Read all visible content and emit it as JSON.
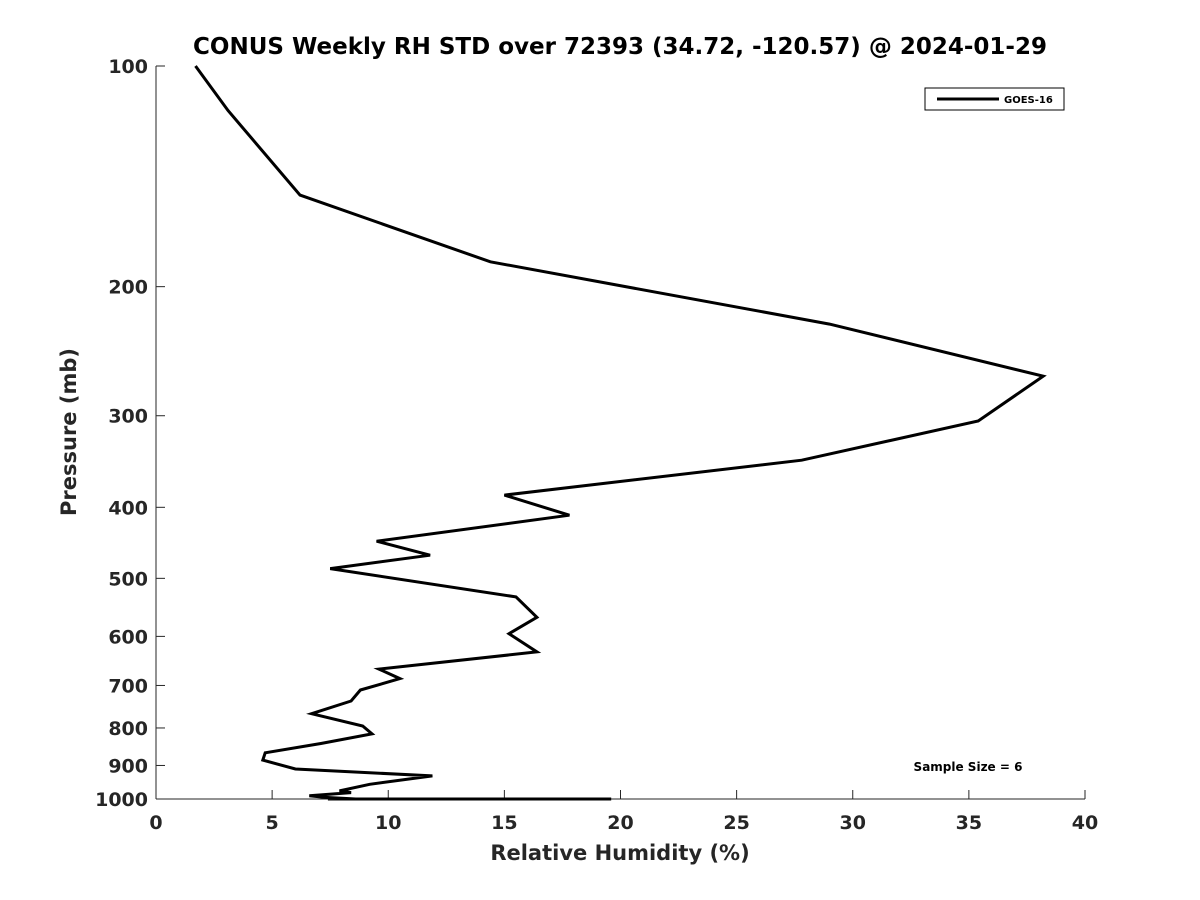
{
  "chart_data": {
    "type": "line",
    "title": "CONUS Weekly RH STD over 72393 (34.72, -120.57) @ 2024-01-29",
    "xlabel": "Relative Humidity (%)",
    "ylabel": "Pressure (mb)",
    "xlim": [
      0,
      40
    ],
    "ylim": [
      100,
      1000
    ],
    "y_scale": "log",
    "y_reversed": true,
    "x_ticks": [
      0,
      5,
      10,
      15,
      20,
      25,
      30,
      35,
      40
    ],
    "y_ticks": [
      100,
      200,
      300,
      400,
      500,
      600,
      700,
      800,
      900,
      1000
    ],
    "grid": false,
    "legend_position": "top-right",
    "annotation": "Sample Size = 6",
    "series": [
      {
        "name": "GOES-16",
        "color": "#000000",
        "x": [
          1.7,
          3.1,
          6.2,
          14.4,
          29.0,
          38.2,
          35.4,
          27.8,
          15.0,
          17.8,
          9.5,
          11.8,
          7.5,
          15.5,
          16.4,
          15.2,
          16.4,
          9.6,
          10.5,
          8.8,
          8.4,
          6.7,
          8.9,
          9.3,
          7.1,
          4.7,
          4.6,
          6.0,
          11.9,
          9.2,
          7.9,
          8.4,
          6.6,
          7.3,
          8.6,
          12.8,
          7.4,
          8.9,
          11.5,
          15.4,
          13.9,
          11.4,
          19.6,
          14.9,
          13.0
        ],
        "y": [
          100,
          115,
          150,
          185,
          225,
          265,
          305,
          345,
          385,
          410,
          445,
          465,
          485,
          530,
          565,
          595,
          630,
          665,
          685,
          710,
          735,
          765,
          795,
          815,
          840,
          865,
          885,
          910,
          930,
          955,
          975,
          980,
          990,
          995,
          1000,
          1000,
          1000,
          1000,
          1000,
          1000,
          1000,
          1000,
          1000,
          1000,
          1000
        ]
      }
    ]
  }
}
